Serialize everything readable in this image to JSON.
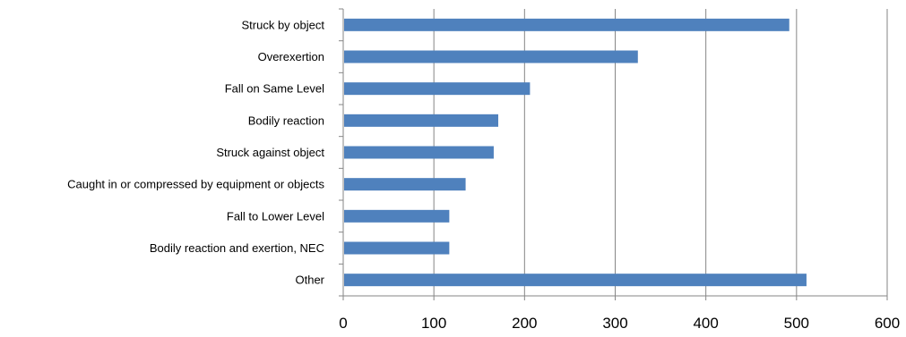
{
  "chart_data": {
    "type": "bar",
    "orientation": "horizontal",
    "categories": [
      "Struck by object",
      "Overexertion",
      "Fall on Same Level",
      "Bodily reaction",
      "Struck against object",
      "Caught in or compressed by equipment or objects",
      "Fall to Lower Level",
      "Bodily reaction and exertion, NEC",
      "Other"
    ],
    "values": [
      492,
      325,
      206,
      171,
      166,
      135,
      117,
      117,
      511
    ],
    "xlim": [
      0,
      600
    ],
    "xticks": [
      "0",
      "100",
      "200",
      "300",
      "400",
      "500",
      "600"
    ],
    "grid": "vertical",
    "legend": "none",
    "colors": {
      "bar": "#4F81BD",
      "grid": "#868686",
      "axis": "#868686"
    }
  }
}
